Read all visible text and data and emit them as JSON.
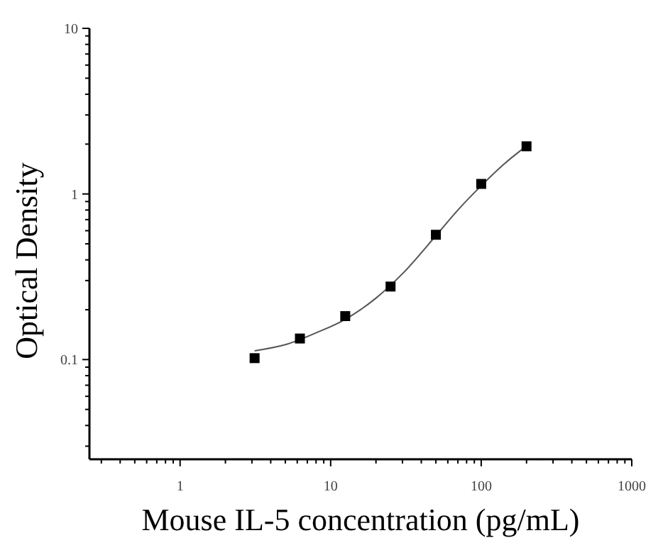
{
  "chart_data": {
    "type": "scatter",
    "xlabel": "Mouse IL-5 concentration (pg/mL)",
    "ylabel": "Optical Density",
    "log": "xy",
    "marker": "square",
    "xlim": [
      0.25,
      1000
    ],
    "ylim": [
      0.025,
      10
    ],
    "xticks": [
      {
        "value": 0.3,
        "label": null
      },
      {
        "value": 0.4,
        "label": null
      },
      {
        "value": 0.5,
        "label": null
      },
      {
        "value": 0.6,
        "label": null
      },
      {
        "value": 0.7,
        "label": null
      },
      {
        "value": 0.8,
        "label": null
      },
      {
        "value": 0.9,
        "label": null
      },
      1,
      {
        "value": 2,
        "label": null
      },
      {
        "value": 3,
        "label": null
      },
      {
        "value": 4,
        "label": null
      },
      {
        "value": 5,
        "label": null
      },
      {
        "value": 6,
        "label": null
      },
      {
        "value": 7,
        "label": null
      },
      {
        "value": 8,
        "label": null
      },
      {
        "value": 9,
        "label": null
      },
      10,
      {
        "value": 20,
        "label": null
      },
      {
        "value": 30,
        "label": null
      },
      {
        "value": 40,
        "label": null
      },
      {
        "value": 50,
        "label": null
      },
      {
        "value": 60,
        "label": null
      },
      {
        "value": 70,
        "label": null
      },
      {
        "value": 80,
        "label": null
      },
      {
        "value": 90,
        "label": null
      },
      100,
      {
        "value": 200,
        "label": null
      },
      {
        "value": 300,
        "label": null
      },
      {
        "value": 400,
        "label": null
      },
      {
        "value": 500,
        "label": null
      },
      {
        "value": 600,
        "label": null
      },
      {
        "value": 700,
        "label": null
      },
      {
        "value": 800,
        "label": null
      },
      {
        "value": 900,
        "label": null
      },
      1000
    ],
    "yticks": [
      {
        "value": 0.03,
        "label": null
      },
      {
        "value": 0.04,
        "label": null
      },
      {
        "value": 0.05,
        "label": null
      },
      {
        "value": 0.06,
        "label": null
      },
      {
        "value": 0.07,
        "label": null
      },
      {
        "value": 0.08,
        "label": null
      },
      {
        "value": 0.09,
        "label": null
      },
      0.1,
      {
        "value": 0.2,
        "label": null
      },
      {
        "value": 0.3,
        "label": null
      },
      {
        "value": 0.4,
        "label": null
      },
      {
        "value": 0.5,
        "label": null
      },
      {
        "value": 0.6,
        "label": null
      },
      {
        "value": 0.7,
        "label": null
      },
      {
        "value": 0.8,
        "label": null
      },
      {
        "value": 0.9,
        "label": null
      },
      1,
      {
        "value": 2,
        "label": null
      },
      {
        "value": 3,
        "label": null
      },
      {
        "value": 4,
        "label": null
      },
      {
        "value": 5,
        "label": null
      },
      {
        "value": 6,
        "label": null
      },
      {
        "value": 7,
        "label": null
      },
      {
        "value": 8,
        "label": null
      },
      {
        "value": 9,
        "label": null
      },
      10
    ],
    "series": [
      {
        "type": "line",
        "color": "#555555",
        "marker": "none",
        "x": [
          3.125,
          5,
          8,
          12.5,
          20,
          30,
          50,
          70,
          100,
          140,
          200
        ],
        "values": [
          0.113,
          0.123,
          0.145,
          0.175,
          0.235,
          0.33,
          0.56,
          0.8,
          1.12,
          1.5,
          1.95
        ]
      },
      {
        "color": "#000000",
        "x": [
          3.125,
          6.25,
          12.5,
          25,
          50,
          100,
          200
        ],
        "values": [
          0.102,
          0.134,
          0.183,
          0.276,
          0.567,
          1.15,
          1.94
        ]
      }
    ]
  }
}
